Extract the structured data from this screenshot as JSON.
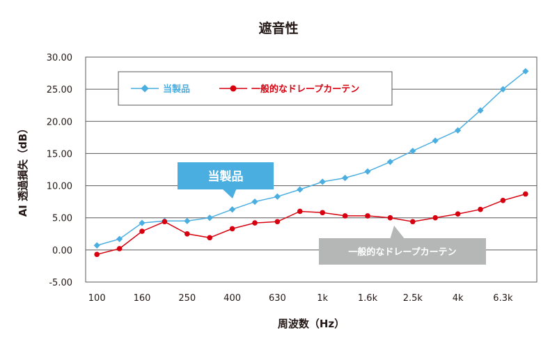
{
  "chart_data": {
    "type": "line",
    "title": "遮音性",
    "xlabel": "周波数（Hz）",
    "ylabel": "AI 透過損失（dB）",
    "ylim": [
      -5,
      30
    ],
    "y_ticks": [
      "30.00",
      "25.00",
      "20.00",
      "15.00",
      "10.00",
      "5.00",
      "0.00",
      "-5.00"
    ],
    "x_tick_labels": [
      "100",
      "160",
      "250",
      "400",
      "630",
      "1k",
      "1.6k",
      "2.5k",
      "4k",
      "6.3k"
    ],
    "x": [
      "100",
      "125",
      "160",
      "200",
      "250",
      "315",
      "400",
      "500",
      "630",
      "800",
      "1k",
      "1.25k",
      "1.6k",
      "2k",
      "2.5k",
      "3.15k",
      "4k",
      "5k",
      "6.3k",
      "8k"
    ],
    "grid": true,
    "legend_position": "top-left",
    "series": [
      {
        "name": "当製品",
        "color": "#4aaee0",
        "marker": "diamond",
        "values": [
          0.7,
          1.7,
          4.2,
          4.5,
          4.5,
          5.0,
          6.3,
          7.5,
          8.3,
          9.4,
          10.6,
          11.2,
          12.2,
          13.7,
          15.4,
          17.0,
          18.6,
          21.7,
          25.0,
          27.8
        ]
      },
      {
        "name": "一般的なドレープカーテン",
        "color": "#d7000f",
        "marker": "circle",
        "values": [
          -0.7,
          0.2,
          2.9,
          4.4,
          2.5,
          1.9,
          3.3,
          4.2,
          4.4,
          6.0,
          5.8,
          5.3,
          5.3,
          5.0,
          4.4,
          5.0,
          5.6,
          6.3,
          7.7,
          8.7
        ]
      }
    ],
    "annotations": [
      {
        "text": "当製品",
        "color": "#4aaee0"
      },
      {
        "text": "一般的なドレープカーテン",
        "color": "#b5b6b6"
      }
    ]
  }
}
